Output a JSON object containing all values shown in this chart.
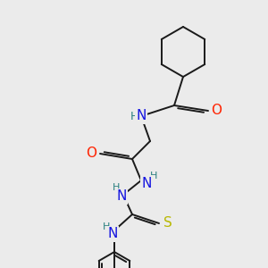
{
  "bg_color": "#ebebeb",
  "bond_color": "#1a1a1a",
  "atom_colors": {
    "N": "#1414e0",
    "O": "#ff2200",
    "S": "#b8b800",
    "H": "#2a8080",
    "C": "#1a1a1a"
  },
  "figsize": [
    3.0,
    3.0
  ],
  "dpi": 100
}
